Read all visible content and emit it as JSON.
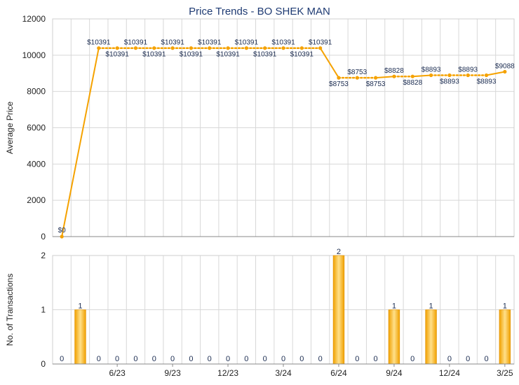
{
  "chart_data": [
    {
      "type": "line",
      "title": "Price Trends - BO SHEK MAN",
      "ylabel": "Average Price",
      "ylim": [
        0,
        12000
      ],
      "yticks": [
        0,
        2000,
        4000,
        6000,
        8000,
        10000,
        12000
      ],
      "grid": true,
      "color": "#f5a200",
      "points": [
        {
          "x": "2023-03",
          "y": 0,
          "label": "$0"
        },
        {
          "x": "2023-05",
          "y": 10391,
          "label": "$10391"
        },
        {
          "x": "2023-06",
          "y": 10391,
          "label": "$10391"
        },
        {
          "x": "2023-07",
          "y": 10391,
          "label": "$10391"
        },
        {
          "x": "2023-08",
          "y": 10391,
          "label": "$10391"
        },
        {
          "x": "2023-09",
          "y": 10391,
          "label": "$10391"
        },
        {
          "x": "2023-10",
          "y": 10391,
          "label": "$10391"
        },
        {
          "x": "2023-11",
          "y": 10391,
          "label": "$10391"
        },
        {
          "x": "2023-12",
          "y": 10391,
          "label": "$10391"
        },
        {
          "x": "2024-01",
          "y": 10391,
          "label": "$10391"
        },
        {
          "x": "2024-02",
          "y": 10391,
          "label": "$10391"
        },
        {
          "x": "2024-03",
          "y": 10391,
          "label": "$10391"
        },
        {
          "x": "2024-04",
          "y": 10391,
          "label": "$10391"
        },
        {
          "x": "2024-05",
          "y": 10391,
          "label": "$10391"
        },
        {
          "x": "2024-06",
          "y": 8753,
          "label": "$8753"
        },
        {
          "x": "2024-07",
          "y": 8753,
          "label": "$8753"
        },
        {
          "x": "2024-08",
          "y": 8753,
          "label": "$8753"
        },
        {
          "x": "2024-09",
          "y": 8828,
          "label": "$8828"
        },
        {
          "x": "2024-10",
          "y": 8828,
          "label": "$8828"
        },
        {
          "x": "2024-11",
          "y": 8893,
          "label": "$8893"
        },
        {
          "x": "2024-12",
          "y": 8893,
          "label": "$8893"
        },
        {
          "x": "2025-01",
          "y": 8893,
          "label": "$8893"
        },
        {
          "x": "2025-02",
          "y": 8893,
          "label": "$8893"
        },
        {
          "x": "2025-03",
          "y": 9088,
          "label": "$9088"
        }
      ]
    },
    {
      "type": "bar",
      "ylabel": "No. of Transactions",
      "ylim": [
        0,
        2
      ],
      "yticks": [
        0,
        1,
        2
      ],
      "grid": true,
      "color": "#f5a200",
      "xticks": [
        "6/23",
        "9/23",
        "12/23",
        "3/24",
        "6/24",
        "9/24",
        "12/24",
        "3/25"
      ],
      "categories": [
        "2023-03",
        "2023-04",
        "2023-05",
        "2023-06",
        "2023-07",
        "2023-08",
        "2023-09",
        "2023-10",
        "2023-11",
        "2023-12",
        "2024-01",
        "2024-02",
        "2024-03",
        "2024-04",
        "2024-05",
        "2024-06",
        "2024-07",
        "2024-08",
        "2024-09",
        "2024-10",
        "2024-11",
        "2024-12",
        "2025-01",
        "2025-02",
        "2025-03"
      ],
      "values": [
        0,
        1,
        0,
        0,
        0,
        0,
        0,
        0,
        0,
        0,
        0,
        0,
        0,
        0,
        0,
        2,
        0,
        0,
        1,
        0,
        1,
        0,
        0,
        0,
        1
      ]
    }
  ]
}
